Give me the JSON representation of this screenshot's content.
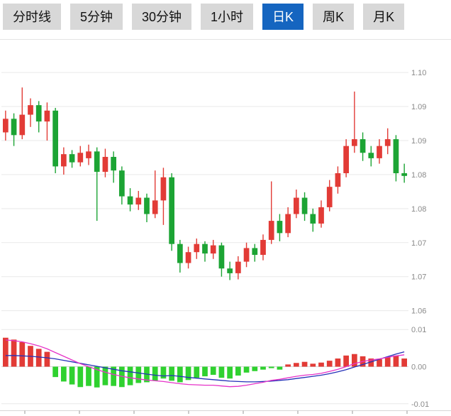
{
  "toolbar": {
    "tabs": [
      {
        "label": "分时线",
        "active": false
      },
      {
        "label": "5分钟",
        "active": false
      },
      {
        "label": "30分钟",
        "active": false
      },
      {
        "label": "1小时",
        "active": false
      },
      {
        "label": "日K",
        "active": true
      },
      {
        "label": "周K",
        "active": false
      },
      {
        "label": "月K",
        "active": false
      }
    ]
  },
  "colors": {
    "tab_bg": "#d8d8d8",
    "tab_text": "#111111",
    "active_tab_bg": "#1565c0",
    "active_tab_text": "#ffffff",
    "up": "#e23b36",
    "down": "#1ca434",
    "macd_up": "#e23b36",
    "macd_down": "#2fd12f",
    "dif_line": "#e632c8",
    "dea_line": "#2431b8",
    "grid": "#e9e9e9",
    "grid_zero": "#d6d6d6",
    "axis_text": "#8a8a8a"
  },
  "chart_data": {
    "type": "candlestick",
    "selected_timeframe": "日K",
    "legend_position": "none",
    "grid": true,
    "candles": [
      [
        1.0912,
        1.0944,
        1.09,
        1.0932
      ],
      [
        1.0932,
        1.094,
        1.0892,
        1.0908
      ],
      [
        1.0908,
        1.0978,
        1.0902,
        1.0938
      ],
      [
        1.0938,
        1.0962,
        1.092,
        1.0952
      ],
      [
        1.0952,
        1.0958,
        1.0912,
        1.0928
      ],
      [
        1.0928,
        1.0956,
        1.09,
        1.0944
      ],
      [
        1.0944,
        1.0948,
        1.0852,
        1.0862
      ],
      [
        1.0862,
        1.089,
        1.085,
        1.088
      ],
      [
        1.088,
        1.0886,
        1.086,
        1.0868
      ],
      [
        1.0868,
        1.0892,
        1.0862,
        1.0882
      ],
      [
        1.0874,
        1.0894,
        1.0864,
        1.0884
      ],
      [
        1.0884,
        1.089,
        1.0782,
        1.0854
      ],
      [
        1.0854,
        1.0888,
        1.0846,
        1.0876
      ],
      [
        1.0876,
        1.0884,
        1.0838,
        1.0856
      ],
      [
        1.0856,
        1.0862,
        1.0806,
        1.0818
      ],
      [
        1.0818,
        1.083,
        1.0796,
        1.0806
      ],
      [
        1.0806,
        1.0826,
        1.0798,
        1.0816
      ],
      [
        1.0816,
        1.0822,
        1.078,
        1.0792
      ],
      [
        1.0792,
        1.0856,
        1.0786,
        1.0812
      ],
      [
        1.0812,
        1.086,
        1.0776,
        1.0846
      ],
      [
        1.0846,
        1.0852,
        1.0738,
        1.0748
      ],
      [
        1.0748,
        1.0754,
        1.0706,
        1.072
      ],
      [
        1.072,
        1.0744,
        1.0712,
        1.0736
      ],
      [
        1.0736,
        1.0756,
        1.0726,
        1.0748
      ],
      [
        1.0748,
        1.0752,
        1.0722,
        1.0734
      ],
      [
        1.0734,
        1.0754,
        1.0726,
        1.0746
      ],
      [
        1.0746,
        1.075,
        1.07,
        1.0712
      ],
      [
        1.0712,
        1.0722,
        1.0695,
        1.0705
      ],
      [
        1.0705,
        1.073,
        1.0696,
        1.0722
      ],
      [
        1.0722,
        1.075,
        1.0714,
        1.0742
      ],
      [
        1.0742,
        1.0748,
        1.0722,
        1.0732
      ],
      [
        1.0732,
        1.0762,
        1.0724,
        1.0754
      ],
      [
        1.0754,
        1.084,
        1.0748,
        1.0782
      ],
      [
        1.0782,
        1.0792,
        1.0752,
        1.0764
      ],
      [
        1.0764,
        1.0802,
        1.0758,
        1.0792
      ],
      [
        1.0792,
        1.0828,
        1.0786,
        1.0816
      ],
      [
        1.0816,
        1.0824,
        1.0782,
        1.0792
      ],
      [
        1.0792,
        1.08,
        1.0766,
        1.0778
      ],
      [
        1.0778,
        1.0812,
        1.0772,
        1.0802
      ],
      [
        1.0802,
        1.0842,
        1.0796,
        1.0832
      ],
      [
        1.0832,
        1.0862,
        1.0822,
        1.0852
      ],
      [
        1.0852,
        1.0902,
        1.0846,
        1.0892
      ],
      [
        1.0892,
        1.0972,
        1.0882,
        1.0902
      ],
      [
        1.0902,
        1.0912,
        1.087,
        1.0882
      ],
      [
        1.0882,
        1.0892,
        1.0862,
        1.0874
      ],
      [
        1.0874,
        1.0902,
        1.0866,
        1.0892
      ],
      [
        1.0892,
        1.0918,
        1.088,
        1.0902
      ],
      [
        1.0902,
        1.0908,
        1.084,
        1.0852
      ],
      [
        1.0852,
        1.0866,
        1.0838,
        1.0848
      ]
    ],
    "price_axis": {
      "ylim": [
        1.0635,
        1.1045
      ],
      "ticks": [
        {
          "v": 1.1,
          "label": "1.10"
        },
        {
          "v": 1.095,
          "label": "1.09"
        },
        {
          "v": 1.09,
          "label": "1.09"
        },
        {
          "v": 1.085,
          "label": "1.08"
        },
        {
          "v": 1.08,
          "label": "1.08"
        },
        {
          "v": 1.075,
          "label": "1.07"
        },
        {
          "v": 1.07,
          "label": "1.07"
        },
        {
          "v": 1.065,
          "label": "1.06"
        }
      ]
    },
    "macd": {
      "histogram": [
        0.0078,
        0.0073,
        0.0066,
        0.0056,
        0.0048,
        0.004,
        -0.0028,
        -0.004,
        -0.0048,
        -0.0055,
        -0.0052,
        -0.0056,
        -0.005,
        -0.0052,
        -0.0055,
        -0.005,
        -0.0044,
        -0.0042,
        -0.0038,
        -0.0032,
        -0.0038,
        -0.0042,
        -0.0036,
        -0.003,
        -0.0026,
        -0.0022,
        -0.003,
        -0.0032,
        -0.0024,
        -0.0016,
        -0.0012,
        -0.0008,
        -0.0004,
        -0.0008,
        0.0006,
        0.001,
        0.0013,
        0.0008,
        0.0011,
        0.0016,
        0.0022,
        0.003,
        0.0034,
        0.0028,
        0.0022,
        0.002,
        0.0026,
        0.003,
        0.0022
      ],
      "dif": [
        0.0072,
        0.007,
        0.0067,
        0.0062,
        0.0056,
        0.0048,
        0.0038,
        0.0028,
        0.0018,
        0.0008,
        0.0,
        -0.0008,
        -0.0015,
        -0.0021,
        -0.0026,
        -0.003,
        -0.0033,
        -0.0036,
        -0.0038,
        -0.004,
        -0.0043,
        -0.0046,
        -0.0048,
        -0.0049,
        -0.005,
        -0.005,
        -0.0052,
        -0.0054,
        -0.0053,
        -0.005,
        -0.0046,
        -0.0042,
        -0.0037,
        -0.0034,
        -0.003,
        -0.0026,
        -0.0023,
        -0.0021,
        -0.0018,
        -0.0013,
        -0.0007,
        0.0,
        0.0008,
        0.0014,
        0.0018,
        0.0021,
        0.0025,
        0.0029,
        0.0032
      ],
      "dea": [
        0.003,
        0.003,
        0.0029,
        0.0028,
        0.0026,
        0.0024,
        0.0021,
        0.0017,
        0.0013,
        0.0009,
        0.0005,
        0.0001,
        -0.0003,
        -0.0007,
        -0.0011,
        -0.0014,
        -0.0017,
        -0.002,
        -0.0023,
        -0.0025,
        -0.0024,
        -0.0026,
        -0.0029,
        -0.0031,
        -0.0033,
        -0.0035,
        -0.0037,
        -0.0039,
        -0.004,
        -0.0041,
        -0.0041,
        -0.004,
        -0.0039,
        -0.0037,
        -0.0035,
        -0.0032,
        -0.0029,
        -0.0026,
        -0.0023,
        -0.0019,
        -0.0014,
        -0.0008,
        -0.0001,
        0.0006,
        0.0013,
        0.002,
        0.0027,
        0.0034,
        0.004
      ],
      "axis": {
        "ylim": [
          -0.011,
          0.011
        ],
        "ticks": [
          {
            "v": 0.01,
            "label": "0.01"
          },
          {
            "v": 0.0,
            "label": "0.00"
          },
          {
            "v": -0.01,
            "label": "-0.01"
          }
        ]
      }
    }
  }
}
